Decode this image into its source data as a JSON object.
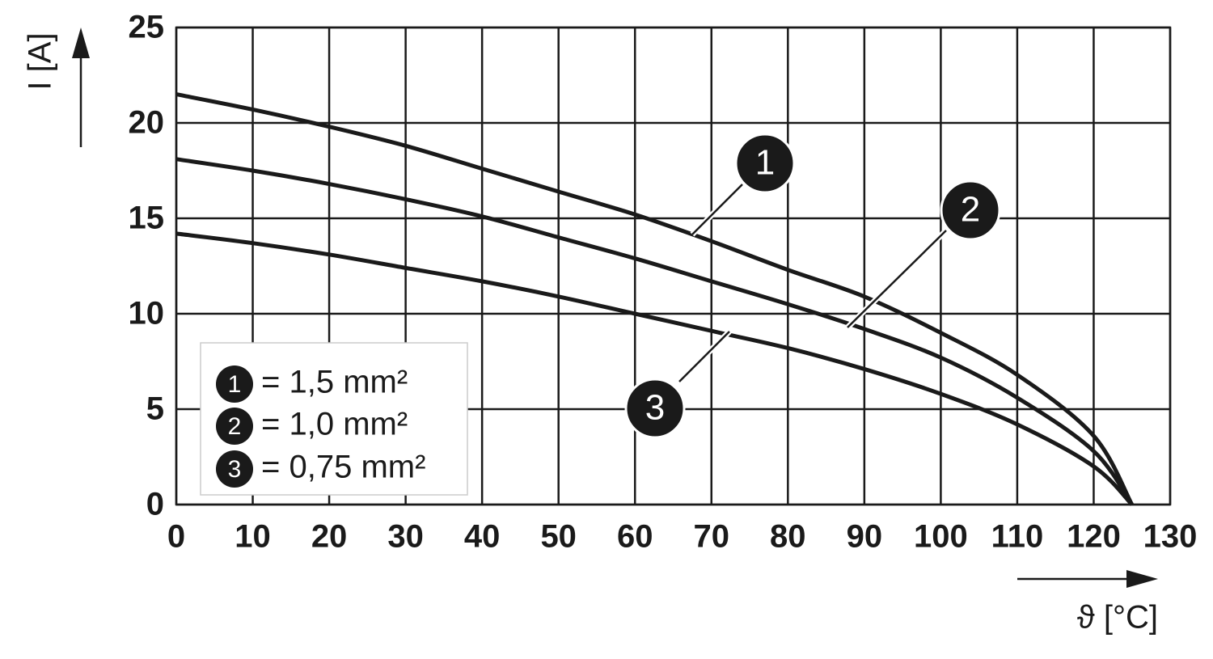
{
  "chart_data": {
    "type": "line",
    "x_label": "ϑ [°C]",
    "y_label": "I [A]",
    "x": [
      0,
      10,
      20,
      30,
      40,
      50,
      60,
      70,
      80,
      90,
      100,
      110,
      120,
      125
    ],
    "series": [
      {
        "name": "= 1,5 mm²",
        "label": "1",
        "color": "#1a1a1a",
        "values": [
          21.5,
          20.7,
          19.8,
          18.8,
          17.6,
          16.4,
          15.2,
          13.8,
          12.3,
          10.9,
          9.0,
          6.8,
          3.6,
          0
        ]
      },
      {
        "name": "= 1,0 mm²",
        "label": "2",
        "color": "#1a1a1a",
        "values": [
          18.1,
          17.5,
          16.8,
          16.0,
          15.1,
          14.0,
          12.9,
          11.7,
          10.5,
          9.2,
          7.7,
          5.6,
          2.8,
          0
        ]
      },
      {
        "name": "= 0,75 mm²",
        "label": "3",
        "color": "#1a1a1a",
        "values": [
          14.2,
          13.7,
          13.1,
          12.4,
          11.7,
          10.9,
          10.0,
          9.1,
          8.2,
          7.1,
          5.8,
          4.2,
          2.0,
          0
        ]
      }
    ],
    "xlim": [
      0,
      130
    ],
    "xticks": [
      0,
      10,
      20,
      30,
      40,
      50,
      60,
      70,
      80,
      90,
      100,
      110,
      120,
      130
    ],
    "ylim": [
      0,
      25
    ],
    "yticks": [
      0,
      5,
      10,
      15,
      20,
      25
    ],
    "grid": true
  }
}
